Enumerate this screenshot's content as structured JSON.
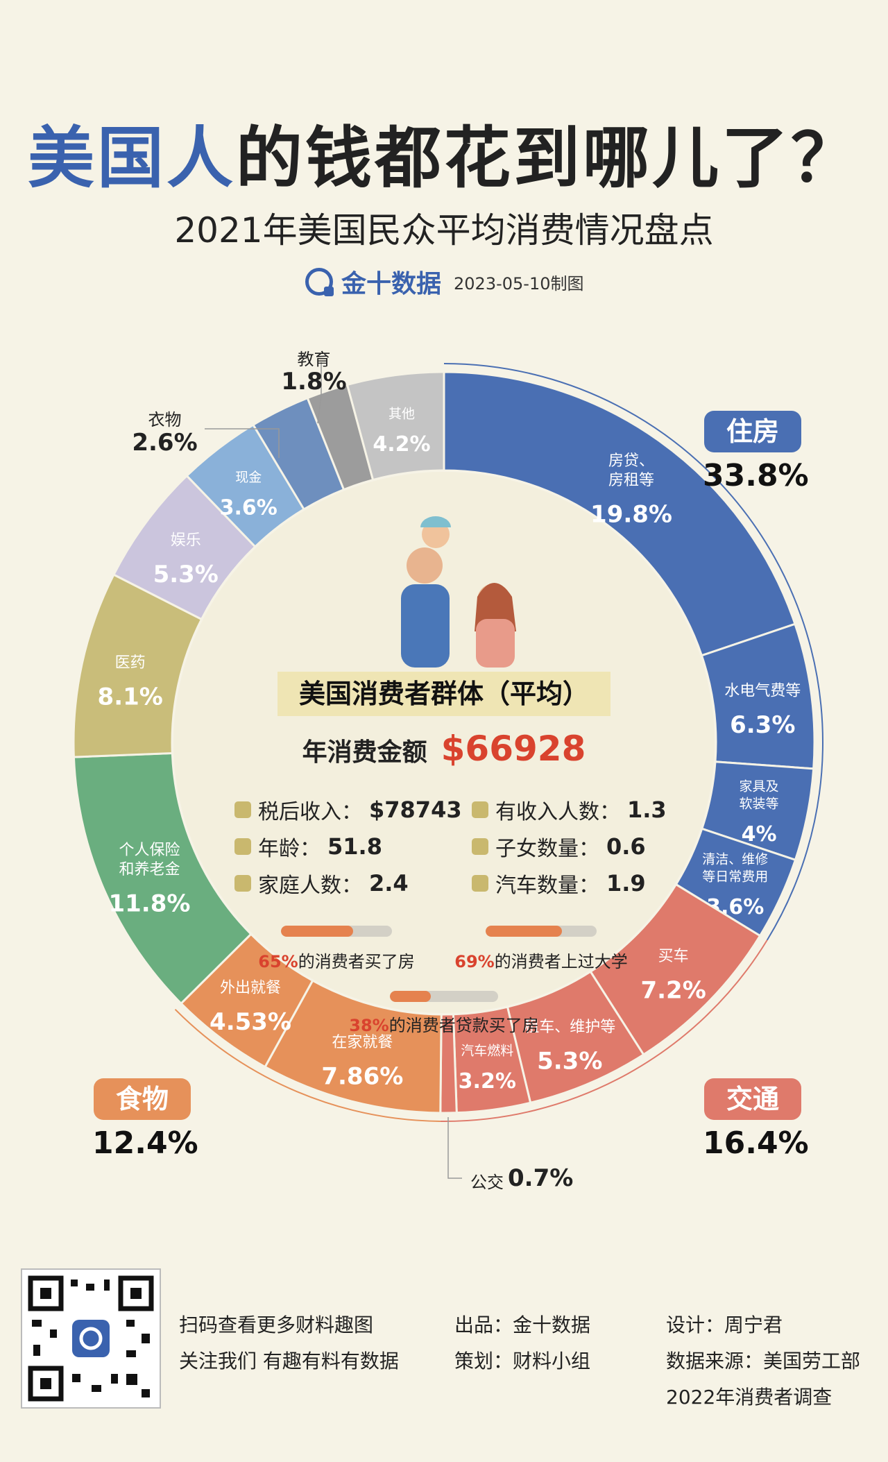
{
  "header": {
    "title_highlight": "美国人",
    "title_rest": "的钱都花到哪儿了？",
    "subtitle": "2021年美国民众平均消费情况盘点",
    "brand": "金十数据",
    "date": "2023-05-10制图"
  },
  "colors": {
    "housing": "#4a6fb3",
    "transport": "#df7a6b",
    "food": "#e6915a",
    "insurance": "#6aae7f",
    "medical": "#c9bd7a",
    "entertainment": "#cbc5dd",
    "cash": "#8ab1d9",
    "clothing": "#6e8fbe",
    "education": "#9c9c9c",
    "other": "#c4c4c4"
  },
  "chart_data": {
    "type": "pie",
    "subtype": "donut",
    "unit": "%",
    "categories": [
      {
        "name": "住房",
        "value": 33.8,
        "color": "#4a6fb3",
        "display": "33.8%"
      },
      {
        "name": "交通",
        "value": 16.4,
        "color": "#df7a6b",
        "display": "16.4%"
      },
      {
        "name": "食物",
        "value": 12.4,
        "color": "#e6915a",
        "display": "12.4%"
      }
    ],
    "slices": [
      {
        "name": "房贷、房租等",
        "label_lines": [
          "房贷、",
          "房租等"
        ],
        "value": 19.8,
        "display": "19.8%",
        "category": "住房"
      },
      {
        "name": "水电气费等",
        "label_lines": [
          "水电气费等"
        ],
        "value": 6.3,
        "display": "6.3%",
        "category": "住房"
      },
      {
        "name": "家具及软装等",
        "label_lines": [
          "家具及",
          "软装等"
        ],
        "value": 4,
        "display": "4%",
        "category": "住房"
      },
      {
        "name": "清洁、维修等日常费用",
        "label_lines": [
          "清洁、维修",
          "等日常费用"
        ],
        "value": 3.6,
        "display": "3.6%",
        "category": "住房"
      },
      {
        "name": "买车",
        "label_lines": [
          "买车"
        ],
        "value": 7.2,
        "display": "7.2%",
        "category": "交通"
      },
      {
        "name": "租车、维护等",
        "label_lines": [
          "租车、维护等"
        ],
        "value": 5.3,
        "display": "5.3%",
        "category": "交通"
      },
      {
        "name": "汽车燃料",
        "label_lines": [
          "汽车燃料"
        ],
        "value": 3.2,
        "display": "3.2%",
        "category": "交通"
      },
      {
        "name": "公交",
        "label_lines": [],
        "value": 0.7,
        "display": "0.7%",
        "category": "交通"
      },
      {
        "name": "在家就餐",
        "label_lines": [
          "在家就餐"
        ],
        "value": 7.86,
        "display": "7.86%",
        "category": "食物"
      },
      {
        "name": "外出就餐",
        "label_lines": [
          "外出就餐"
        ],
        "value": 4.53,
        "display": "4.53%",
        "category": "食物"
      },
      {
        "name": "个人保险和养老金",
        "label_lines": [
          "个人保险",
          "和养老金"
        ],
        "value": 11.8,
        "display": "11.8%",
        "category": "个人保险和养老金"
      },
      {
        "name": "医药",
        "label_lines": [
          "医药"
        ],
        "value": 8.1,
        "display": "8.1%",
        "category": "医药"
      },
      {
        "name": "娱乐",
        "label_lines": [
          "娱乐"
        ],
        "value": 5.3,
        "display": "5.3%",
        "category": "娱乐"
      },
      {
        "name": "现金",
        "label_lines": [
          "现金"
        ],
        "value": 3.6,
        "display": "3.6%",
        "category": "现金"
      },
      {
        "name": "衣物",
        "label_lines": [],
        "value": 2.6,
        "display": "2.6%",
        "category": "衣物"
      },
      {
        "name": "教育",
        "label_lines": [],
        "value": 1.8,
        "display": "1.8%",
        "category": "教育"
      },
      {
        "name": "其他",
        "label_lines": [
          "其他"
        ],
        "value": 4.2,
        "display": "4.2%",
        "category": "其他"
      }
    ]
  },
  "outside_labels": {
    "education": {
      "name": "教育",
      "pct": "1.8%"
    },
    "clothing": {
      "name": "衣物",
      "pct": "2.6%"
    },
    "bus": {
      "name": "公交",
      "pct": "0.7%"
    }
  },
  "center": {
    "title": "美国消费者群体（平均）",
    "amount_label": "年消费金额",
    "amount_value": "$66928",
    "stats": [
      {
        "label": "税后收入：",
        "value": "$78743"
      },
      {
        "label": "有收入人数：",
        "value": "1.3"
      },
      {
        "label": "年龄：",
        "value": "51.8"
      },
      {
        "label": "子女数量：",
        "value": "0.6"
      },
      {
        "label": "家庭人数：",
        "value": "2.4"
      },
      {
        "label": "汽车数量：",
        "value": "1.9"
      }
    ],
    "bars": [
      {
        "percent": 65,
        "pct_text": "65%",
        "text": "的消费者买了房"
      },
      {
        "percent": 69,
        "pct_text": "69%",
        "text": "的消费者上过大学"
      },
      {
        "percent": 38,
        "pct_text": "38%",
        "text": "的消费者贷款买了房"
      }
    ]
  },
  "footer": {
    "scan_1": "扫码查看更多财料趣图",
    "scan_2": "关注我们 有趣有料有数据",
    "produced": "出品：金十数据",
    "planned": "策划：财料小组",
    "design": "设计：周宁君",
    "source": "数据来源：美国劳工部",
    "survey": "2022年消费者调查"
  }
}
